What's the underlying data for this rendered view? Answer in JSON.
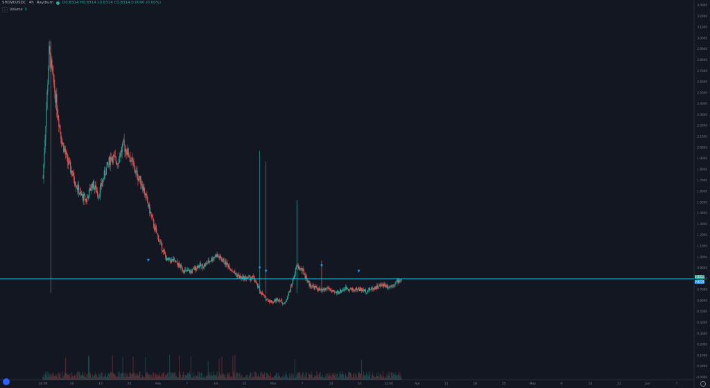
{
  "legend": {
    "symbol": "SHDW/USDC",
    "interval": "4h",
    "exchange": "Raydium",
    "ohlc": "O0.8314  H0.8314  L0.8314  C0.8314  0.0000 (0.00%)",
    "volume_label": "Volume",
    "volume_value": "0"
  },
  "price_badges": {
    "last": "0.8314",
    "second": "0.8236"
  },
  "colors": {
    "background": "#131722",
    "up": "#26a69a",
    "down": "#ef5350",
    "line": "#26c6da",
    "arrow": "#2196f3",
    "axis_text": "#787b86"
  },
  "icons": {
    "logo": "tradingview-cloud-icon",
    "settings": "gear-icon",
    "arrow": "arrow-down-icon"
  },
  "chart_data": {
    "type": "candlestick",
    "price_axis_labels": [
      "3.3000",
      "3.2000",
      "3.1000",
      "3.0000",
      "2.9000",
      "2.8000",
      "2.7000",
      "2.6000",
      "2.5000",
      "2.4000",
      "2.3000",
      "2.2000",
      "2.1000",
      "2.0000",
      "1.9000",
      "1.8000",
      "1.7000",
      "1.6000",
      "1.5000",
      "1.4000",
      "1.3000",
      "1.2000",
      "1.1000",
      "1.0000",
      "0.9000",
      "0.8000",
      "0.7000",
      "0.6000",
      "0.5000",
      "0.4000",
      "0.3000",
      "0.2000",
      "0.1000",
      "0.0000",
      "-0.0000"
    ],
    "time_axis_labels": [
      "16:00",
      "10",
      "17",
      "24",
      "Feb",
      "7",
      "14",
      "21",
      "Mar",
      "7",
      "14",
      "21",
      "12:00",
      "Apr",
      "11",
      "18",
      "25",
      "May",
      "9",
      "16",
      "23",
      "Jun",
      "7"
    ],
    "ylim": [
      0,
      3.3
    ],
    "horizontal_line": 0.8314,
    "price_path": [
      [
        0,
        1.75
      ],
      [
        1,
        2.9
      ],
      [
        2,
        2.5
      ],
      [
        3,
        2.1
      ],
      [
        4,
        1.9
      ],
      [
        5,
        1.75
      ],
      [
        6,
        1.6
      ],
      [
        7,
        1.55
      ],
      [
        8,
        1.7
      ],
      [
        9,
        1.6
      ],
      [
        10,
        1.8
      ],
      [
        11,
        1.95
      ],
      [
        12,
        1.9
      ],
      [
        13,
        2.05
      ],
      [
        14,
        1.95
      ],
      [
        15,
        1.8
      ],
      [
        16,
        1.7
      ],
      [
        17,
        1.5
      ],
      [
        18,
        1.3
      ],
      [
        19,
        1.15
      ],
      [
        20,
        1.0
      ],
      [
        21,
        1.0
      ],
      [
        22,
        0.95
      ],
      [
        23,
        0.9
      ],
      [
        24,
        0.9
      ],
      [
        25,
        0.95
      ],
      [
        26,
        0.95
      ],
      [
        27,
        1.0
      ],
      [
        28,
        1.05
      ],
      [
        29,
        1.0
      ],
      [
        30,
        0.95
      ],
      [
        31,
        0.88
      ],
      [
        32,
        0.84
      ],
      [
        33,
        0.84
      ],
      [
        34,
        0.84
      ],
      [
        35,
        0.72
      ],
      [
        36,
        0.65
      ],
      [
        37,
        0.62
      ],
      [
        38,
        0.65
      ],
      [
        39,
        0.6
      ],
      [
        40,
        0.75
      ],
      [
        41,
        0.95
      ],
      [
        42,
        0.9
      ],
      [
        43,
        0.78
      ],
      [
        44,
        0.75
      ],
      [
        45,
        0.72
      ],
      [
        46,
        0.75
      ],
      [
        47,
        0.7
      ],
      [
        48,
        0.72
      ],
      [
        49,
        0.75
      ],
      [
        50,
        0.73
      ],
      [
        51,
        0.74
      ],
      [
        52,
        0.72
      ],
      [
        53,
        0.74
      ],
      [
        54,
        0.76
      ],
      [
        55,
        0.78
      ],
      [
        56,
        0.76
      ],
      [
        57,
        0.8
      ],
      [
        58,
        0.83
      ]
    ],
    "events": [
      {
        "pos": 17,
        "price": 0.95
      },
      {
        "pos": 35,
        "price": 0.88
      },
      {
        "pos": 36,
        "price": 0.85
      },
      {
        "pos": 45,
        "price": 0.9
      },
      {
        "pos": 51,
        "price": 0.85
      }
    ]
  }
}
